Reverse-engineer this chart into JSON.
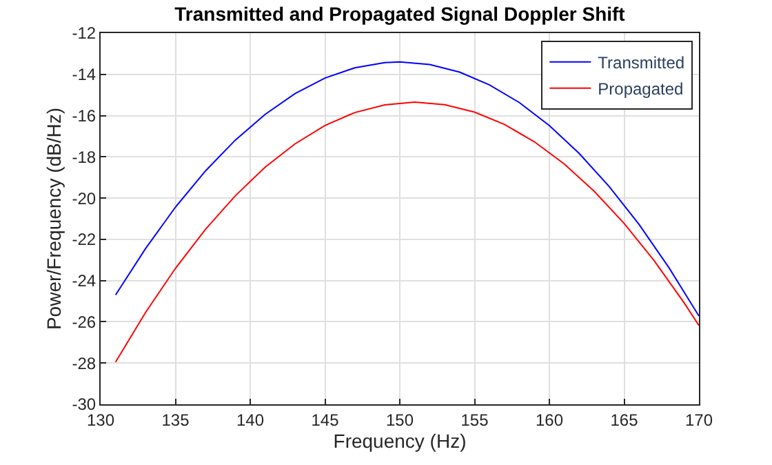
{
  "chart_data": {
    "type": "line",
    "title": "Transmitted and Propagated Signal Doppler Shift",
    "xlabel": "Frequency (Hz)",
    "ylabel": "Power/Frequency (dB/Hz)",
    "xlim": [
      130,
      170
    ],
    "xticks": [
      130,
      135,
      140,
      145,
      150,
      155,
      160,
      165,
      170
    ],
    "ylim": [
      -30,
      -12
    ],
    "yticks": [
      -30,
      -28,
      -26,
      -24,
      -22,
      -20,
      -18,
      -16,
      -14,
      -12
    ],
    "grid": true,
    "legend": "top right",
    "marker": "none",
    "line_style": "solid",
    "series": [
      {
        "name": "Transmitted",
        "color": "#0000ff",
        "x": [
          131,
          133,
          135,
          137,
          139,
          141,
          143,
          145,
          147,
          149,
          150,
          152,
          154,
          156,
          158,
          160,
          162,
          164,
          166,
          168,
          170
        ],
        "values": [
          -24.7,
          -22.45,
          -20.44,
          -18.69,
          -17.19,
          -15.94,
          -14.93,
          -14.18,
          -13.68,
          -13.43,
          -13.4,
          -13.52,
          -13.89,
          -14.51,
          -15.37,
          -16.48,
          -17.84,
          -19.44,
          -21.28,
          -23.38,
          -25.72
        ]
      },
      {
        "name": "Propagated",
        "color": "#ff0000",
        "x": [
          131,
          133,
          135,
          137,
          139,
          141,
          143,
          145,
          147,
          149,
          151,
          153,
          155,
          157,
          159,
          161,
          163,
          165,
          167,
          169,
          170
        ],
        "values": [
          -27.95,
          -25.55,
          -23.41,
          -21.52,
          -19.89,
          -18.5,
          -17.37,
          -16.48,
          -15.85,
          -15.48,
          -15.35,
          -15.47,
          -15.83,
          -16.43,
          -17.27,
          -18.35,
          -19.67,
          -21.23,
          -23.03,
          -25.07,
          -26.18
        ]
      }
    ]
  }
}
